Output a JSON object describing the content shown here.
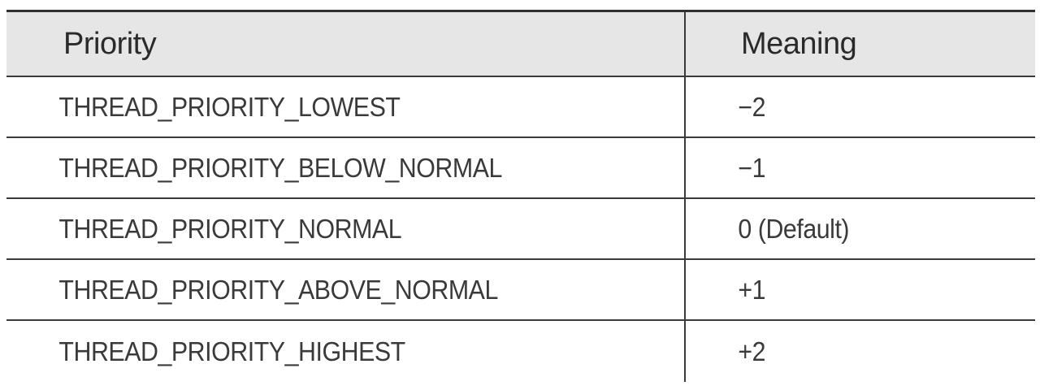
{
  "table": {
    "headers": [
      "Priority",
      "Meaning"
    ],
    "rows": [
      {
        "priority": "THREAD_PRIORITY_LOWEST",
        "meaning": "−2"
      },
      {
        "priority": "THREAD_PRIORITY_BELOW_NORMAL",
        "meaning": "−1"
      },
      {
        "priority": "THREAD_PRIORITY_NORMAL",
        "meaning": "0 (Default)"
      },
      {
        "priority": "THREAD_PRIORITY_ABOVE_NORMAL",
        "meaning": "+1"
      },
      {
        "priority": "THREAD_PRIORITY_HIGHEST",
        "meaning": "+2"
      }
    ]
  }
}
